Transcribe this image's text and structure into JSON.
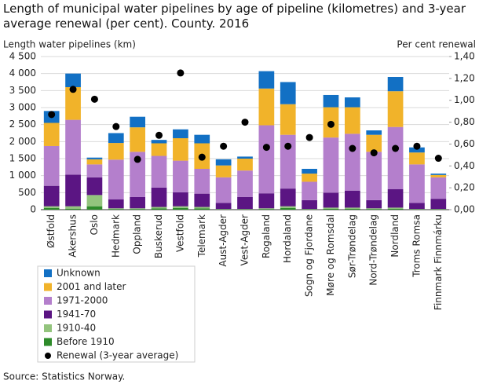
{
  "chart_data": {
    "type": "bar",
    "stacked": true,
    "title": "Length of municipal water pipelines by age of pipeline (kilometres) and 3-year average renewal (per cent). County. 2016",
    "y_label": "Length water pipelines  (km)",
    "y2_label": "Per cent  renewal",
    "source": "Source: Statistics Norway.",
    "categories": [
      "Østfold",
      "Akershus",
      "Oslo",
      "Hedmark",
      "Oppland",
      "Buskerud",
      "Vestfold",
      "Telemark",
      "Aust-Agder",
      "Vest-Agder",
      "Rogaland",
      "Hordaland",
      "Sogn og Fjordane",
      "Møre og Romsdal",
      "Sør-Trøndelag",
      "Nord-Trøndelag",
      "Nordland",
      "Troms Romsa",
      "Finnmark Finnmárku"
    ],
    "series": [
      {
        "name": "Before 1910",
        "color": "#2e8b2a",
        "values": [
          50,
          30,
          100,
          20,
          20,
          40,
          50,
          40,
          10,
          10,
          20,
          50,
          10,
          30,
          30,
          20,
          30,
          10,
          10
        ]
      },
      {
        "name": "1910-40",
        "color": "#93c47d",
        "values": [
          50,
          70,
          330,
          20,
          20,
          40,
          50,
          40,
          10,
          10,
          20,
          50,
          10,
          30,
          30,
          20,
          30,
          10,
          10
        ]
      },
      {
        "name": "1941-70",
        "color": "#5b1583",
        "values": [
          600,
          930,
          520,
          260,
          330,
          570,
          410,
          390,
          180,
          350,
          440,
          520,
          260,
          440,
          500,
          240,
          540,
          180,
          300
        ]
      },
      {
        "name": "1971-2000",
        "color": "#b47fcc",
        "values": [
          1170,
          1610,
          380,
          1170,
          1330,
          930,
          930,
          730,
          750,
          780,
          2000,
          1580,
          540,
          1620,
          1670,
          1420,
          1830,
          1130,
          630
        ]
      },
      {
        "name": "2001 and later",
        "color": "#f1b32a",
        "values": [
          680,
          960,
          150,
          490,
          720,
          370,
          660,
          750,
          350,
          350,
          1080,
          900,
          240,
          890,
          780,
          500,
          1050,
          350,
          70
        ]
      },
      {
        "name": "Unknown",
        "color": "#1270c4",
        "values": [
          350,
          400,
          50,
          290,
          310,
          100,
          260,
          250,
          180,
          60,
          510,
          650,
          140,
          360,
          290,
          130,
          420,
          150,
          40
        ]
      },
      {
        "name": "Renewal (3-year average)",
        "color": "#000000",
        "type": "scatter",
        "axis": "y2",
        "values": [
          0.87,
          1.1,
          1.01,
          0.76,
          0.46,
          0.68,
          1.25,
          0.48,
          0.58,
          0.8,
          0.57,
          0.58,
          0.66,
          0.78,
          0.56,
          0.52,
          0.56,
          0.58,
          0.47
        ]
      }
    ],
    "ylim": [
      0,
      4500
    ],
    "yticks": [
      0,
      500,
      {
        "value": 1000,
        "label": "1 000"
      },
      {
        "value": 1500,
        "label": "1 500"
      },
      {
        "value": 2000,
        "label": "2 000"
      },
      {
        "value": 2500,
        "label": "2 500"
      },
      {
        "value": 3000,
        "label": "3 000"
      },
      {
        "value": 3500,
        "label": "3 500"
      },
      {
        "value": 4000,
        "label": "4 000"
      },
      {
        "value": 4500,
        "label": "4 500"
      }
    ],
    "y2lim": [
      0,
      1.4
    ],
    "y2ticks": [
      {
        "value": 0,
        "label": "0,00"
      },
      {
        "value": 0.2,
        "label": "0,20"
      },
      {
        "value": 0.4,
        "label": "0,40"
      },
      {
        "value": 0.6,
        "label": "0,60"
      },
      {
        "value": 0.8,
        "label": "0,80"
      },
      {
        "value": 1.0,
        "label": "1,00"
      },
      {
        "value": 1.2,
        "label": "1,20"
      },
      {
        "value": 1.4,
        "label": "1,40"
      }
    ],
    "grid": true,
    "legend": "bottom-left"
  }
}
